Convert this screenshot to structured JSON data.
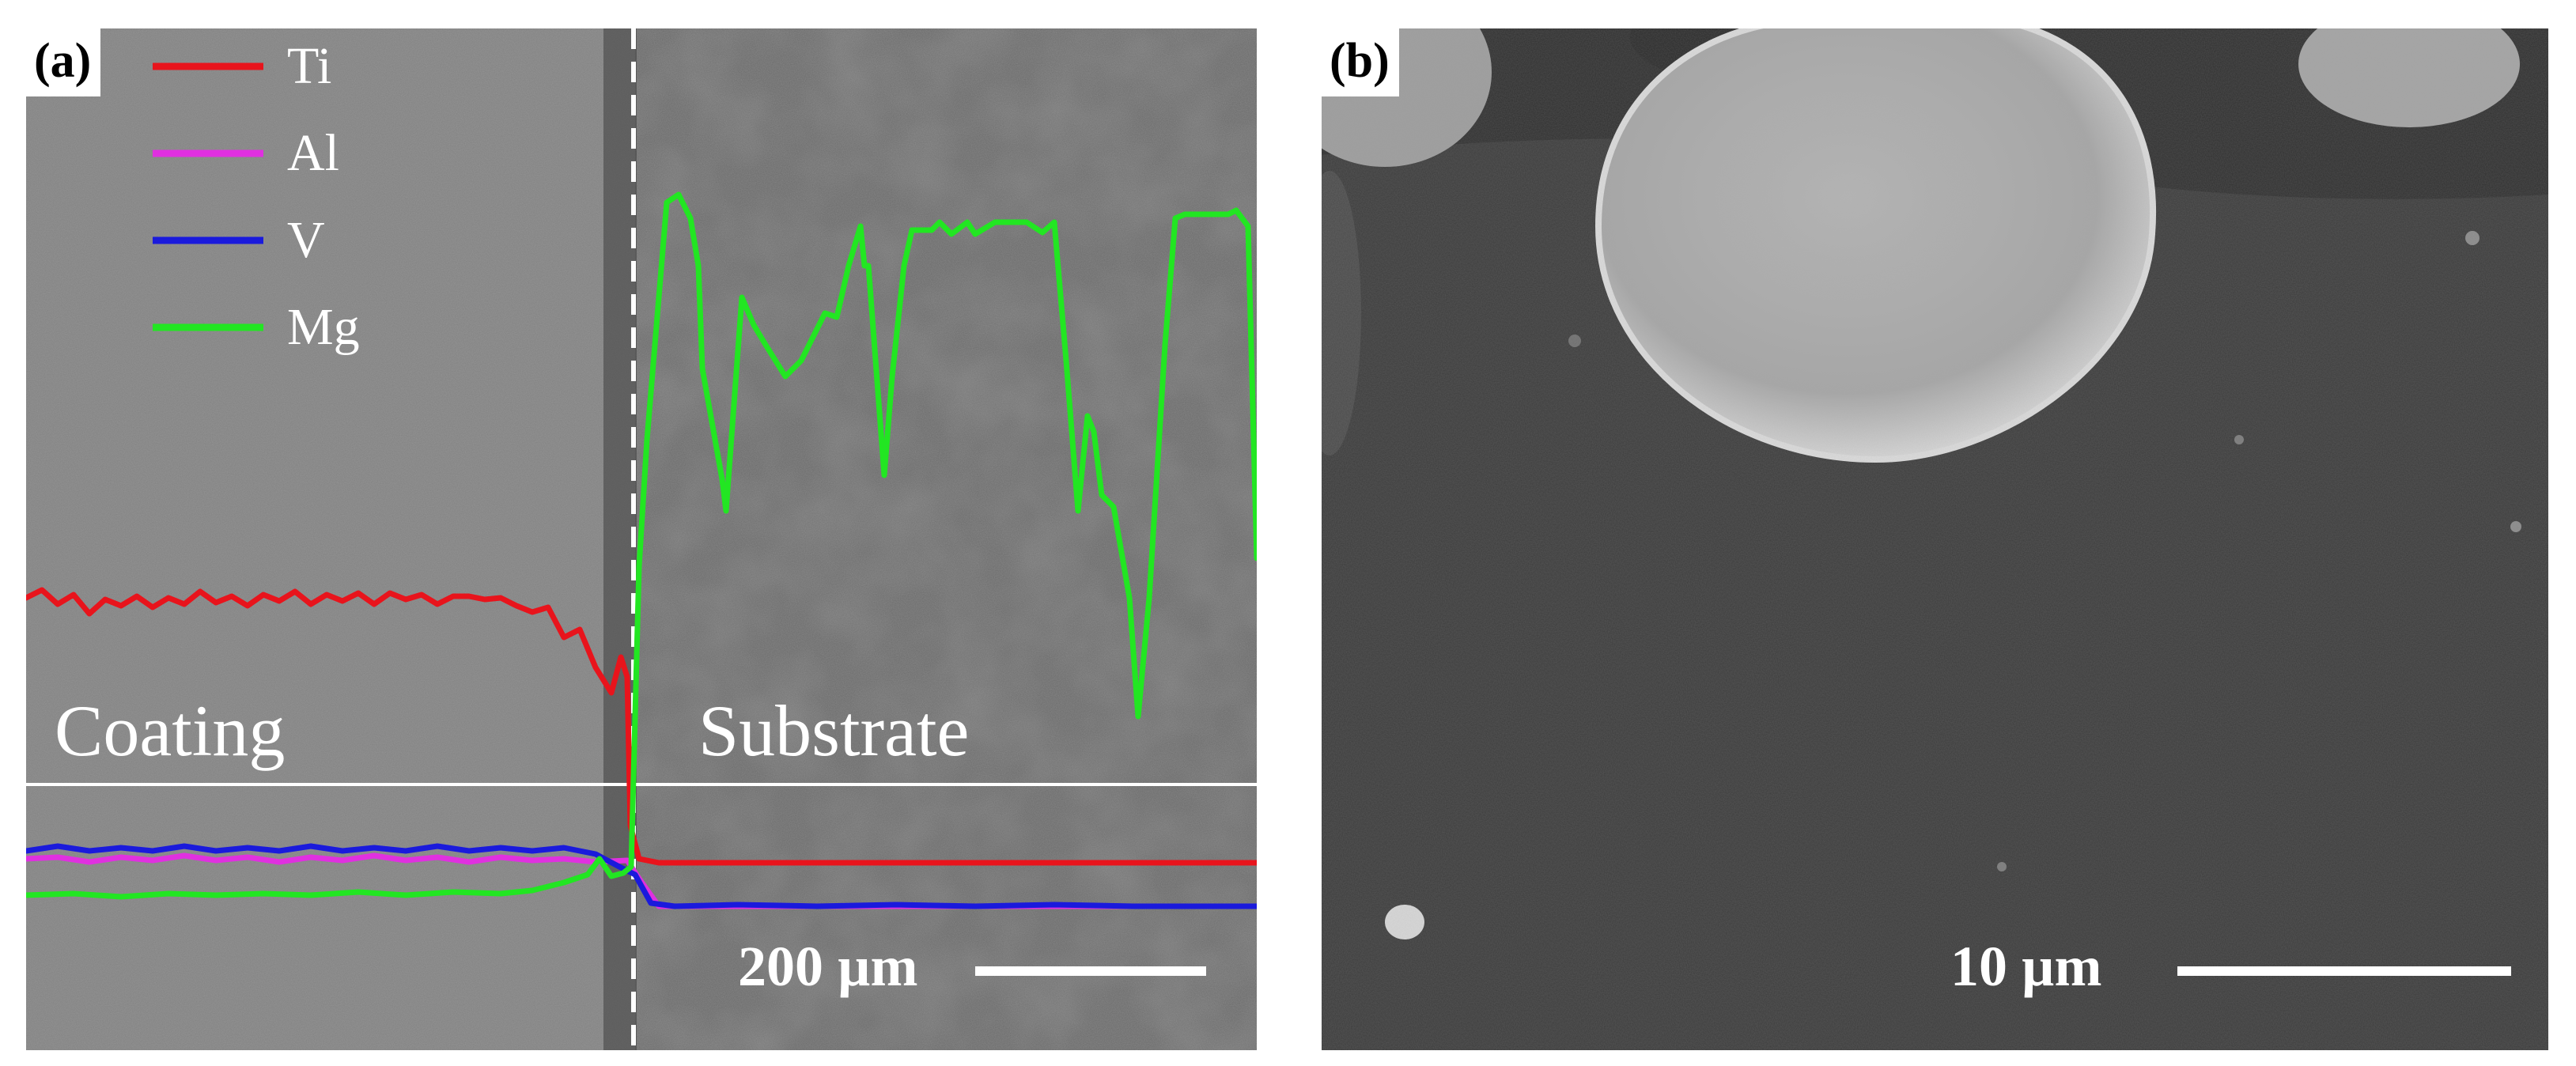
{
  "panel_a": {
    "label": "(a)",
    "region_left": "Coating",
    "region_right": "Substrate",
    "scale_text": "200 µm",
    "legend": [
      {
        "name": "Ti",
        "color": "#e8141c"
      },
      {
        "name": "Al",
        "color": "#e030e0"
      },
      {
        "name": "V",
        "color": "#1a1adc"
      },
      {
        "name": "Mg",
        "color": "#22e622"
      }
    ]
  },
  "panel_b": {
    "label": "(b)",
    "scale_text": "10 µm"
  }
}
